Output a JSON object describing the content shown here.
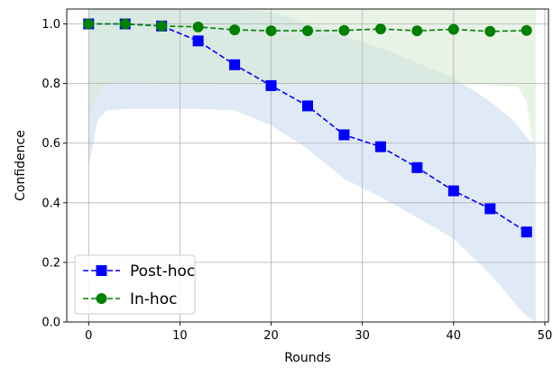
{
  "chart_data": {
    "type": "line",
    "xlabel": "Rounds",
    "ylabel": "Confidence",
    "xlim": [
      -2.4,
      50.4
    ],
    "ylim": [
      0.0,
      1.05
    ],
    "xticks": [
      0,
      10,
      20,
      30,
      40,
      50
    ],
    "yticks": [
      0.0,
      0.2,
      0.4,
      0.6,
      0.8,
      1.0
    ],
    "xtick_labels": [
      "0",
      "10",
      "20",
      "30",
      "40",
      "50"
    ],
    "ytick_labels": [
      "0.0",
      "0.2",
      "0.4",
      "0.6",
      "0.8",
      "1.0"
    ],
    "grid": true,
    "legend_position": "lower-left",
    "series": [
      {
        "name": "Post-hoc",
        "color": "#0000ff",
        "band_color": "#c6d8ee",
        "marker": "square",
        "linestyle": "dashed",
        "x": [
          0,
          4,
          8,
          12,
          16,
          20,
          24,
          28,
          32,
          36,
          40,
          44,
          48
        ],
        "y": [
          1.0,
          1.0,
          0.993,
          0.943,
          0.863,
          0.793,
          0.725,
          0.628,
          0.588,
          0.518,
          0.44,
          0.38,
          0.302
        ],
        "band": {
          "x": [
            0,
            1,
            2,
            4,
            8,
            12,
            16,
            20,
            24,
            28,
            32,
            36,
            40,
            44,
            46,
            47,
            48,
            49
          ],
          "upper": [
            1.05,
            1.05,
            1.05,
            1.05,
            1.05,
            1.05,
            1.05,
            1.04,
            1.0,
            0.96,
            0.92,
            0.87,
            0.82,
            0.74,
            0.69,
            0.66,
            0.62,
            0.59
          ],
          "lower": [
            0.52,
            0.68,
            0.71,
            0.715,
            0.715,
            0.715,
            0.71,
            0.66,
            0.58,
            0.48,
            0.42,
            0.35,
            0.28,
            0.16,
            0.09,
            0.05,
            0.02,
            0.0
          ]
        }
      },
      {
        "name": "In-hoc",
        "color": "#008000",
        "band_color": "#d6ead1",
        "marker": "circle",
        "linestyle": "dashed",
        "x": [
          0,
          4,
          8,
          12,
          16,
          20,
          24,
          28,
          32,
          36,
          40,
          44,
          48
        ],
        "y": [
          1.0,
          1.0,
          0.993,
          0.99,
          0.98,
          0.977,
          0.977,
          0.978,
          0.983,
          0.977,
          0.982,
          0.975,
          0.978
        ],
        "band": {
          "x": [
            0,
            1,
            2,
            4,
            8,
            12,
            16,
            20,
            24,
            28,
            32,
            36,
            40,
            44,
            46,
            47,
            48,
            49
          ],
          "upper": [
            1.05,
            1.05,
            1.05,
            1.05,
            1.05,
            1.05,
            1.05,
            1.05,
            1.05,
            1.05,
            1.05,
            1.05,
            1.05,
            1.05,
            1.05,
            1.05,
            1.05,
            1.05
          ],
          "lower": [
            0.69,
            0.77,
            0.8,
            0.805,
            0.8,
            0.8,
            0.795,
            0.795,
            0.8,
            0.8,
            0.8,
            0.8,
            0.8,
            0.795,
            0.79,
            0.79,
            0.74,
            0.52
          ]
        }
      }
    ]
  }
}
